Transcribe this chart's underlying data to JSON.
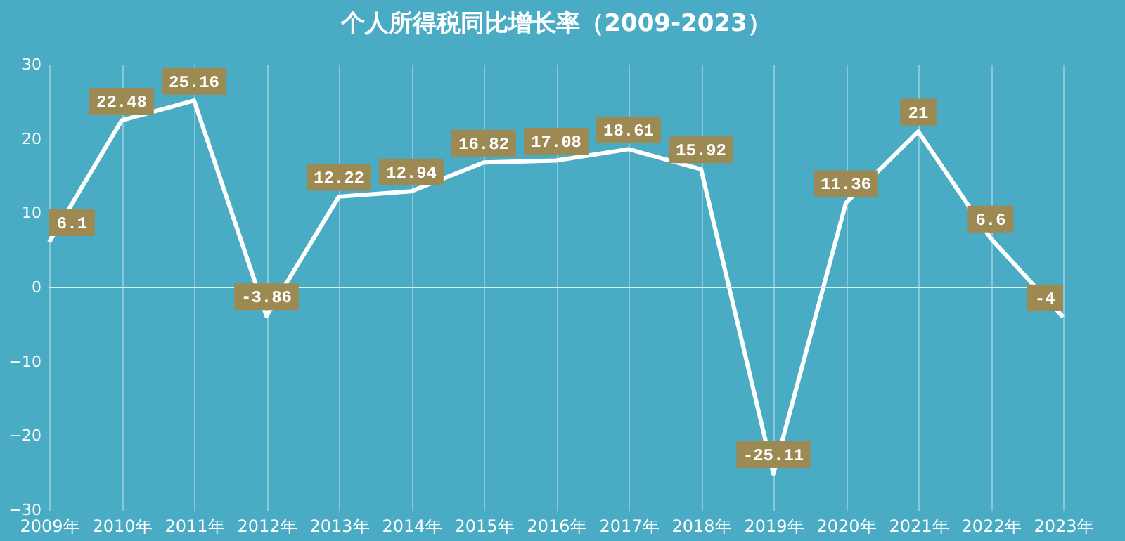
{
  "chart_data": {
    "type": "line",
    "title": "个人所得税同比增长率（2009-2023）",
    "categories": [
      "2009年",
      "2010年",
      "2011年",
      "2012年",
      "2013年",
      "2014年",
      "2015年",
      "2016年",
      "2017年",
      "2018年",
      "2019年",
      "2020年",
      "2021年",
      "2022年",
      "2023年"
    ],
    "series": [
      {
        "color": "#ffffff",
        "values": [
          6.1,
          22.48,
          25.16,
          -3.86,
          12.22,
          12.94,
          16.82,
          17.08,
          18.61,
          15.92,
          -25.11,
          11.36,
          21,
          6.6,
          -4
        ]
      }
    ],
    "ylim": [
      -30,
      30
    ],
    "yticks": [
      -30,
      -20,
      -10,
      0,
      10,
      20,
      30
    ],
    "grid": "x",
    "marker": "none",
    "line_style": "solid",
    "data_labels": true,
    "ref_lines": [
      {
        "axis": "y",
        "value": 0,
        "color": "#d8f0f7"
      }
    ]
  }
}
